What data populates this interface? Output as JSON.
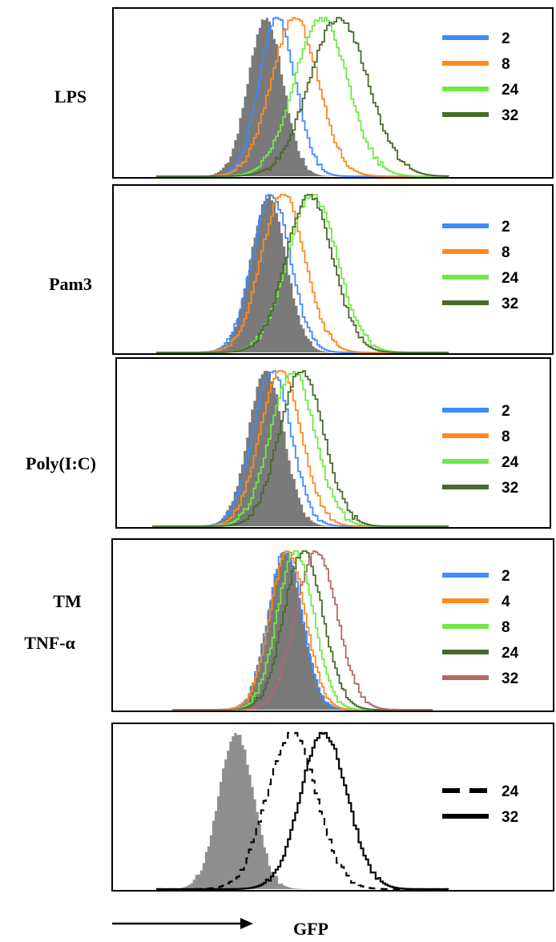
{
  "figure": {
    "xlabel": "GFP"
  },
  "chart_data": [
    {
      "type": "area",
      "row_label": "LPS",
      "xlim": [
        0,
        100
      ],
      "ylim": [
        0,
        1
      ],
      "filled_reference": {
        "mean": 37,
        "sd": 6.0
      },
      "series": [
        {
          "name": "2",
          "color": "#3d8bff",
          "mean": 41,
          "sd": 6.2
        },
        {
          "name": "8",
          "color": "#ff8a1f",
          "mean": 47,
          "sd": 8.0
        },
        {
          "name": "24",
          "color": "#6eea45",
          "mean": 56,
          "sd": 9.0
        },
        {
          "name": "32",
          "color": "#4a6a2a",
          "mean": 62,
          "sd": 10.0
        }
      ]
    },
    {
      "type": "area",
      "row_label": "Pam3",
      "xlim": [
        0,
        100
      ],
      "ylim": [
        0,
        1
      ],
      "filled_reference": {
        "mean": 38,
        "sd": 6.0
      },
      "series": [
        {
          "name": "2",
          "color": "#3d8bff",
          "mean": 39,
          "sd": 6.5
        },
        {
          "name": "8",
          "color": "#ff8a1f",
          "mean": 43,
          "sd": 7.5
        },
        {
          "name": "24",
          "color": "#6eea45",
          "mean": 53,
          "sd": 8.5
        },
        {
          "name": "32",
          "color": "#4a6a2a",
          "mean": 52,
          "sd": 8.0
        }
      ]
    },
    {
      "type": "area",
      "row_label": "Poly(I:C)",
      "xlim": [
        0,
        100
      ],
      "ylim": [
        0,
        1
      ],
      "filled_reference": {
        "mean": 38,
        "sd": 6.0
      },
      "series": [
        {
          "name": "2",
          "color": "#3d8bff",
          "mean": 40,
          "sd": 6.5
        },
        {
          "name": "8",
          "color": "#ff8a1f",
          "mean": 43,
          "sd": 7.0
        },
        {
          "name": "24",
          "color": "#6eea45",
          "mean": 47,
          "sd": 7.5
        },
        {
          "name": "32",
          "color": "#4a6a2a",
          "mean": 50,
          "sd": 7.5
        }
      ]
    },
    {
      "type": "area",
      "row_label": "TNF-α",
      "xlim": [
        0,
        100
      ],
      "ylim": [
        0,
        1
      ],
      "filled_reference": {
        "mean": 43,
        "sd": 6.5
      },
      "series": [
        {
          "name": "2",
          "color": "#3d8bff",
          "mean": 43,
          "sd": 6.5
        },
        {
          "name": "4",
          "color": "#ff8a1f",
          "mean": 44,
          "sd": 6.8
        },
        {
          "name": "8",
          "color": "#6eea45",
          "mean": 47,
          "sd": 7.0
        },
        {
          "name": "24",
          "color": "#4a6a2a",
          "mean": 50,
          "sd": 7.5
        },
        {
          "name": "32",
          "color": "#b06a6a",
          "mean": 55,
          "sd": 8.0
        }
      ]
    },
    {
      "type": "area",
      "row_label": "TM",
      "xlim": [
        0,
        100
      ],
      "ylim": [
        0,
        1
      ],
      "filled_reference": {
        "mean": 27,
        "sd": 6.0
      },
      "series": [
        {
          "name": "24",
          "color": "#000000",
          "dashed": true,
          "mean": 46,
          "sd": 8.5
        },
        {
          "name": "32",
          "color": "#000000",
          "dashed": false,
          "mean": 57,
          "sd": 8.0
        }
      ]
    }
  ]
}
